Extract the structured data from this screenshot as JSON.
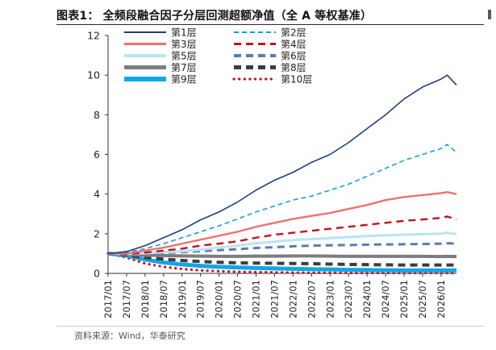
{
  "figure": {
    "title": "图表1：  全频段融合因子分层回测超额净值（全 A 等权基准）",
    "source": "资料来源：Wind，华泰研究"
  },
  "chart_data": {
    "type": "line",
    "title": "全频段融合因子分层回测超额净值（全 A 等权基准）",
    "xlabel": "",
    "ylabel": "",
    "ylim": [
      0,
      12
    ],
    "yticks": [
      0,
      2,
      4,
      6,
      8,
      10,
      12
    ],
    "xticks": [
      "2017/01",
      "2017/07",
      "2018/01",
      "2018/07",
      "2019/01",
      "2019/07",
      "2020/01",
      "2020/07",
      "2021/01",
      "2021/07",
      "2022/01",
      "2022/07",
      "2023/01",
      "2023/07",
      "2024/01",
      "2024/07",
      "2025/01",
      "2025/07",
      "2026/01"
    ],
    "x_range": [
      "2017/01",
      "2026/06"
    ],
    "grid": false,
    "legend": "top-left, 2 columns",
    "series": [
      {
        "name": "第1层",
        "color": "#1f3f7a",
        "style": "solid",
        "points": [
          [
            "2017/01",
            1.0
          ],
          [
            "2017/07",
            1.1
          ],
          [
            "2018/01",
            1.4
          ],
          [
            "2018/07",
            1.8
          ],
          [
            "2019/01",
            2.2
          ],
          [
            "2019/07",
            2.7
          ],
          [
            "2020/01",
            3.1
          ],
          [
            "2020/07",
            3.6
          ],
          [
            "2021/01",
            4.2
          ],
          [
            "2021/07",
            4.7
          ],
          [
            "2022/01",
            5.1
          ],
          [
            "2022/07",
            5.6
          ],
          [
            "2023/01",
            6.0
          ],
          [
            "2023/07",
            6.6
          ],
          [
            "2024/01",
            7.3
          ],
          [
            "2024/07",
            8.0
          ],
          [
            "2025/01",
            8.8
          ],
          [
            "2025/07",
            9.4
          ],
          [
            "2026/01",
            9.8
          ],
          [
            "2026/03",
            10.0
          ],
          [
            "2026/06",
            9.5
          ]
        ]
      },
      {
        "name": "第2层",
        "color": "#1a9ad6",
        "style": "dash",
        "points": [
          [
            "2017/01",
            1.0
          ],
          [
            "2017/07",
            1.05
          ],
          [
            "2018/01",
            1.25
          ],
          [
            "2018/07",
            1.5
          ],
          [
            "2019/01",
            1.8
          ],
          [
            "2019/07",
            2.1
          ],
          [
            "2020/01",
            2.4
          ],
          [
            "2020/07",
            2.75
          ],
          [
            "2021/01",
            3.1
          ],
          [
            "2021/07",
            3.4
          ],
          [
            "2022/01",
            3.7
          ],
          [
            "2022/07",
            3.9
          ],
          [
            "2023/01",
            4.2
          ],
          [
            "2023/07",
            4.5
          ],
          [
            "2024/01",
            4.9
          ],
          [
            "2024/07",
            5.3
          ],
          [
            "2025/01",
            5.7
          ],
          [
            "2025/07",
            6.0
          ],
          [
            "2026/01",
            6.3
          ],
          [
            "2026/03",
            6.5
          ],
          [
            "2026/06",
            6.1
          ]
        ]
      },
      {
        "name": "第3层",
        "color": "#f07070",
        "style": "solid",
        "points": [
          [
            "2017/01",
            1.0
          ],
          [
            "2017/07",
            1.0
          ],
          [
            "2018/01",
            1.15
          ],
          [
            "2018/07",
            1.3
          ],
          [
            "2019/01",
            1.5
          ],
          [
            "2019/07",
            1.7
          ],
          [
            "2020/01",
            1.9
          ],
          [
            "2020/07",
            2.1
          ],
          [
            "2021/01",
            2.35
          ],
          [
            "2021/07",
            2.55
          ],
          [
            "2022/01",
            2.75
          ],
          [
            "2022/07",
            2.9
          ],
          [
            "2023/01",
            3.05
          ],
          [
            "2023/07",
            3.25
          ],
          [
            "2024/01",
            3.45
          ],
          [
            "2024/07",
            3.7
          ],
          [
            "2025/01",
            3.85
          ],
          [
            "2025/07",
            3.95
          ],
          [
            "2026/01",
            4.05
          ],
          [
            "2026/03",
            4.1
          ],
          [
            "2026/06",
            4.0
          ]
        ]
      },
      {
        "name": "第4层",
        "color": "#c0141e",
        "style": "dash",
        "points": [
          [
            "2017/01",
            1.0
          ],
          [
            "2017/07",
            0.97
          ],
          [
            "2018/01",
            1.05
          ],
          [
            "2018/07",
            1.15
          ],
          [
            "2019/01",
            1.25
          ],
          [
            "2019/07",
            1.4
          ],
          [
            "2020/01",
            1.5
          ],
          [
            "2020/07",
            1.62
          ],
          [
            "2021/01",
            1.8
          ],
          [
            "2021/07",
            1.95
          ],
          [
            "2022/01",
            2.05
          ],
          [
            "2022/07",
            2.15
          ],
          [
            "2023/01",
            2.25
          ],
          [
            "2023/07",
            2.35
          ],
          [
            "2024/01",
            2.45
          ],
          [
            "2024/07",
            2.55
          ],
          [
            "2025/01",
            2.65
          ],
          [
            "2025/07",
            2.72
          ],
          [
            "2026/01",
            2.8
          ],
          [
            "2026/03",
            2.87
          ],
          [
            "2026/06",
            2.72
          ]
        ]
      },
      {
        "name": "第5层",
        "color": "#bde3f7",
        "style": "solid",
        "points": [
          [
            "2017/01",
            1.0
          ],
          [
            "2017/07",
            0.98
          ],
          [
            "2018/01",
            1.02
          ],
          [
            "2018/07",
            1.07
          ],
          [
            "2019/01",
            1.12
          ],
          [
            "2019/07",
            1.2
          ],
          [
            "2020/01",
            1.3
          ],
          [
            "2020/07",
            1.4
          ],
          [
            "2021/01",
            1.52
          ],
          [
            "2021/07",
            1.6
          ],
          [
            "2022/01",
            1.68
          ],
          [
            "2022/07",
            1.73
          ],
          [
            "2023/01",
            1.78
          ],
          [
            "2023/07",
            1.83
          ],
          [
            "2024/01",
            1.88
          ],
          [
            "2024/07",
            1.92
          ],
          [
            "2025/01",
            1.95
          ],
          [
            "2025/07",
            1.98
          ],
          [
            "2026/01",
            2.0
          ],
          [
            "2026/03",
            2.05
          ],
          [
            "2026/06",
            1.98
          ]
        ]
      },
      {
        "name": "第6层",
        "color": "#5a7cae",
        "style": "dash",
        "points": [
          [
            "2017/01",
            1.0
          ],
          [
            "2017/07",
            0.98
          ],
          [
            "2018/01",
            1.0
          ],
          [
            "2018/07",
            1.03
          ],
          [
            "2019/01",
            1.07
          ],
          [
            "2019/07",
            1.12
          ],
          [
            "2020/01",
            1.17
          ],
          [
            "2020/07",
            1.22
          ],
          [
            "2021/01",
            1.28
          ],
          [
            "2021/07",
            1.32
          ],
          [
            "2022/01",
            1.37
          ],
          [
            "2022/07",
            1.4
          ],
          [
            "2023/01",
            1.42
          ],
          [
            "2023/07",
            1.43
          ],
          [
            "2024/01",
            1.45
          ],
          [
            "2024/07",
            1.46
          ],
          [
            "2025/01",
            1.47
          ],
          [
            "2025/07",
            1.48
          ],
          [
            "2026/01",
            1.5
          ],
          [
            "2026/03",
            1.52
          ],
          [
            "2026/06",
            1.5
          ]
        ]
      },
      {
        "name": "第7层",
        "color": "#7d7d7d",
        "style": "solid",
        "points": [
          [
            "2017/01",
            1.0
          ],
          [
            "2017/07",
            0.97
          ],
          [
            "2018/01",
            0.92
          ],
          [
            "2018/07",
            0.9
          ],
          [
            "2019/01",
            0.88
          ],
          [
            "2019/07",
            0.87
          ],
          [
            "2020/01",
            0.86
          ],
          [
            "2020/07",
            0.86
          ],
          [
            "2021/01",
            0.87
          ],
          [
            "2021/07",
            0.87
          ],
          [
            "2022/01",
            0.88
          ],
          [
            "2022/07",
            0.88
          ],
          [
            "2023/01",
            0.87
          ],
          [
            "2023/07",
            0.86
          ],
          [
            "2024/01",
            0.86
          ],
          [
            "2024/07",
            0.86
          ],
          [
            "2025/01",
            0.86
          ],
          [
            "2025/07",
            0.86
          ],
          [
            "2026/01",
            0.85
          ],
          [
            "2026/03",
            0.86
          ],
          [
            "2026/06",
            0.85
          ]
        ]
      },
      {
        "name": "第8层",
        "color": "#3c3c3c",
        "style": "dash",
        "points": [
          [
            "2017/01",
            1.0
          ],
          [
            "2017/07",
            0.93
          ],
          [
            "2018/01",
            0.8
          ],
          [
            "2018/07",
            0.72
          ],
          [
            "2019/01",
            0.65
          ],
          [
            "2019/07",
            0.6
          ],
          [
            "2020/01",
            0.56
          ],
          [
            "2020/07",
            0.53
          ],
          [
            "2021/01",
            0.52
          ],
          [
            "2021/07",
            0.51
          ],
          [
            "2022/01",
            0.5
          ],
          [
            "2022/07",
            0.49
          ],
          [
            "2023/01",
            0.47
          ],
          [
            "2023/07",
            0.45
          ],
          [
            "2024/01",
            0.44
          ],
          [
            "2024/07",
            0.43
          ],
          [
            "2025/01",
            0.42
          ],
          [
            "2025/07",
            0.42
          ],
          [
            "2026/01",
            0.42
          ],
          [
            "2026/03",
            0.42
          ],
          [
            "2026/06",
            0.42
          ]
        ]
      },
      {
        "name": "第9层",
        "color": "#14a5e6",
        "style": "solid",
        "points": [
          [
            "2017/01",
            1.0
          ],
          [
            "2017/07",
            0.9
          ],
          [
            "2018/01",
            0.7
          ],
          [
            "2018/07",
            0.55
          ],
          [
            "2019/01",
            0.45
          ],
          [
            "2019/07",
            0.38
          ],
          [
            "2020/01",
            0.33
          ],
          [
            "2020/07",
            0.3
          ],
          [
            "2021/01",
            0.27
          ],
          [
            "2021/07",
            0.25
          ],
          [
            "2022/01",
            0.23
          ],
          [
            "2022/07",
            0.21
          ],
          [
            "2023/01",
            0.2
          ],
          [
            "2023/07",
            0.18
          ],
          [
            "2024/01",
            0.17
          ],
          [
            "2024/07",
            0.16
          ],
          [
            "2025/01",
            0.15
          ],
          [
            "2025/07",
            0.15
          ],
          [
            "2026/01",
            0.15
          ],
          [
            "2026/03",
            0.15
          ],
          [
            "2026/06",
            0.15
          ]
        ]
      },
      {
        "name": "第10层",
        "color": "#c0141e",
        "style": "dot",
        "points": [
          [
            "2017/01",
            1.0
          ],
          [
            "2017/07",
            0.8
          ],
          [
            "2018/01",
            0.5
          ],
          [
            "2018/07",
            0.33
          ],
          [
            "2019/01",
            0.22
          ],
          [
            "2019/07",
            0.15
          ],
          [
            "2020/01",
            0.11
          ],
          [
            "2020/07",
            0.08
          ],
          [
            "2021/01",
            0.06
          ],
          [
            "2021/07",
            0.05
          ],
          [
            "2022/01",
            0.04
          ],
          [
            "2022/07",
            0.03
          ],
          [
            "2023/01",
            0.03
          ],
          [
            "2023/07",
            0.02
          ],
          [
            "2024/01",
            0.02
          ],
          [
            "2024/07",
            0.02
          ],
          [
            "2025/01",
            0.02
          ],
          [
            "2025/07",
            0.02
          ],
          [
            "2026/01",
            0.02
          ],
          [
            "2026/03",
            0.02
          ],
          [
            "2026/06",
            0.02
          ]
        ]
      }
    ]
  }
}
